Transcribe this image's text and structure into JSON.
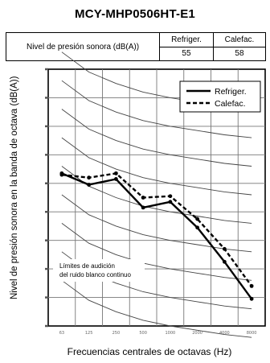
{
  "title": "MCY-MHP0506HT-E1",
  "table": {
    "row_label": "Nivel de presión sonora (dB(A))",
    "col_headers": [
      "Refriger.",
      "Calefac."
    ],
    "values": [
      "55",
      "58"
    ]
  },
  "chart_data": {
    "type": "line",
    "ylabel": "Nivel de presión sonora en la banda de octava (dB(A))",
    "xlabel": "Frecuencias centrales de octavas (Hz)",
    "categories": [
      "63",
      "125",
      "250",
      "500",
      "1000",
      "2000",
      "4000",
      "8000"
    ],
    "ylim": [
      0,
      90
    ],
    "grid": true,
    "legend_position": "top-right",
    "series": [
      {
        "name": "Refriger.",
        "style": "solid",
        "values": [
          53.5,
          49.5,
          51.5,
          41.5,
          43.5,
          34.5,
          22.5,
          9.5
        ]
      },
      {
        "name": "Calefac.",
        "style": "dashed",
        "values": [
          53.0,
          52.0,
          53.5,
          45.0,
          45.5,
          37.5,
          27.0,
          14.0
        ]
      }
    ],
    "nc_curves_label": "Límites de audición del ruido blanco continuo",
    "series_colors": {
      "Refriger.": "#000000",
      "Calefac.": "#000000"
    }
  }
}
